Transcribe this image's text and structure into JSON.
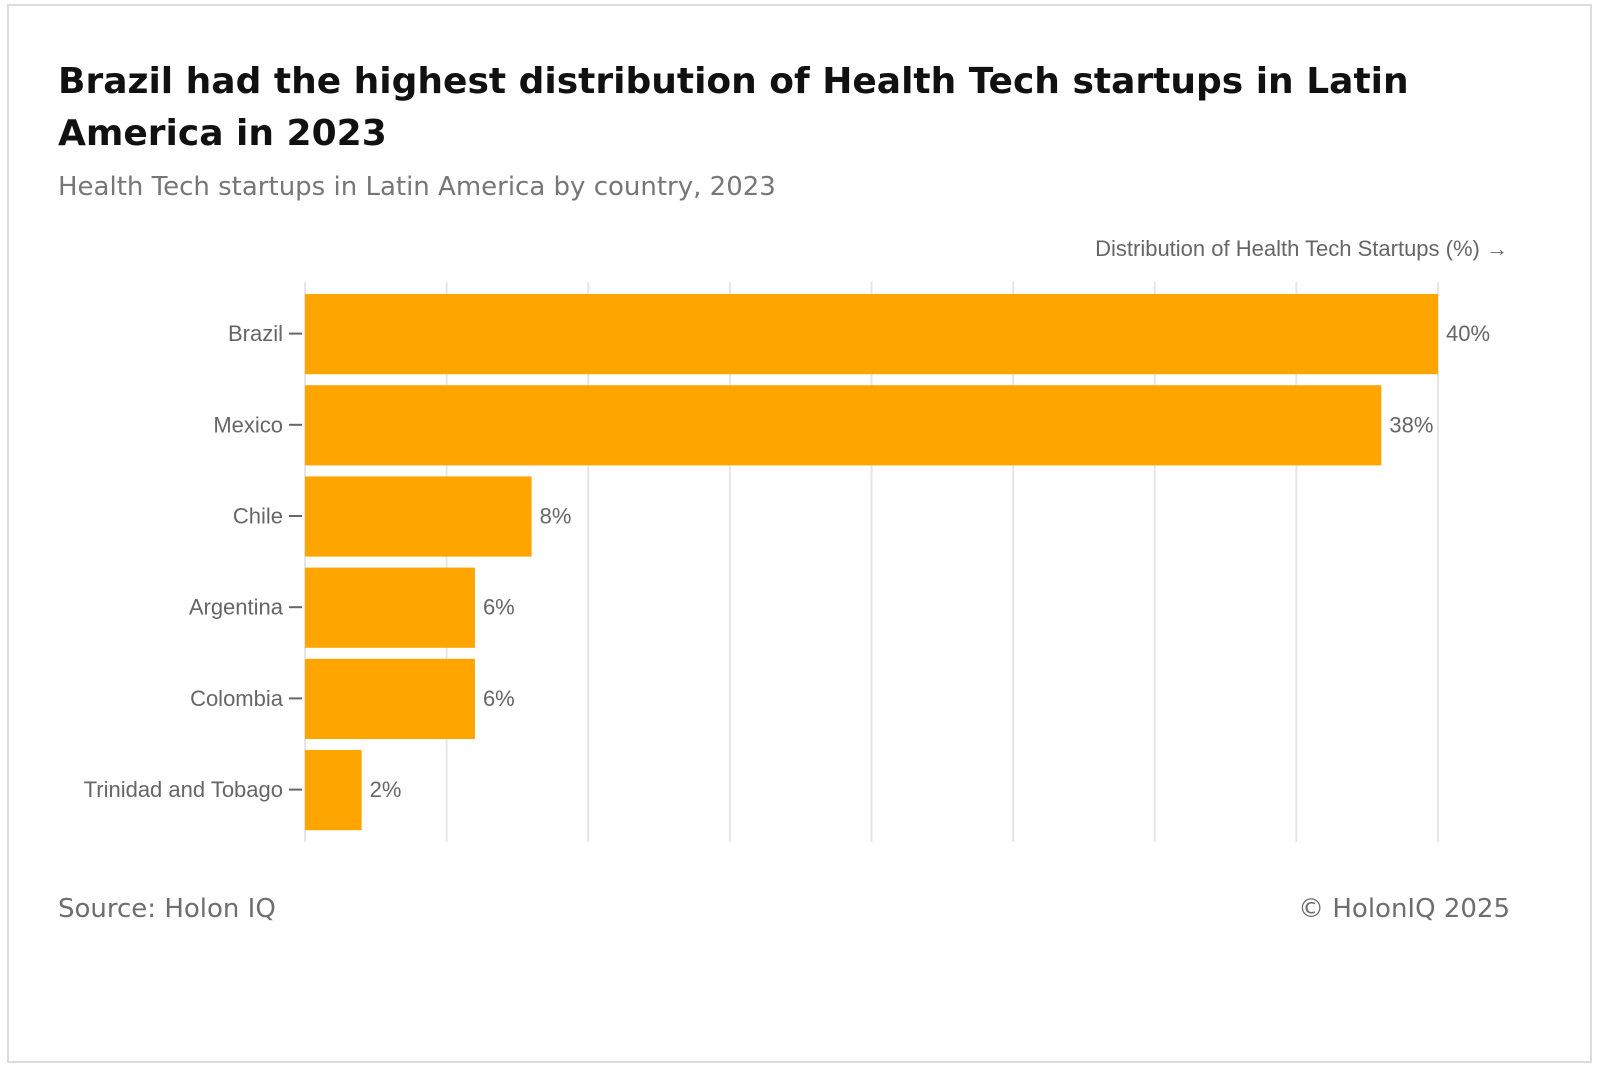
{
  "title": "Brazil had the highest distribution of Health Tech startups in Latin America in 2023",
  "subtitle": "Health Tech startups in Latin America by country, 2023",
  "source": "Source: Holon IQ",
  "copyright": "© HolonIQ 2025",
  "colors": {
    "bar": "#FFA500",
    "grid": "#e6e6e6",
    "text": "#666666"
  },
  "chart_data": {
    "type": "bar",
    "orientation": "horizontal",
    "xlabel": "Distribution of Health Tech Startups (%) →",
    "ylabel": "",
    "xlim": [
      0,
      40
    ],
    "grid": true,
    "categories": [
      "Brazil",
      "Mexico",
      "Chile",
      "Argentina",
      "Colombia",
      "Trinidad and Tobago"
    ],
    "values": [
      40,
      38,
      8,
      6,
      6,
      2
    ],
    "data_labels": [
      "40%",
      "38%",
      "8%",
      "6%",
      "6%",
      "2%"
    ]
  }
}
